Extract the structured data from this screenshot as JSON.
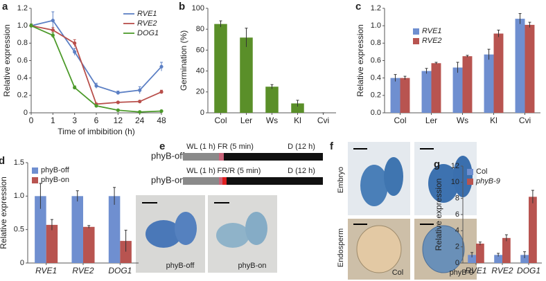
{
  "chart_data": [
    {
      "panel": "a",
      "type": "line",
      "xlabel": "Time of imbibition (h)",
      "ylabel": "Relative expression",
      "categories": [
        "0",
        "1",
        "3",
        "6",
        "12",
        "24",
        "48"
      ],
      "ylim": [
        0,
        1.2
      ],
      "yticks": [
        0,
        0.2,
        0.4,
        0.6,
        0.8,
        {
          "value": 1,
          "label": "1.0"
        },
        1.2
      ],
      "italic_legend": true,
      "series": [
        {
          "name": "RVE1",
          "color": "#5b7fc4",
          "values": [
            1.0,
            1.06,
            0.7,
            0.31,
            0.23,
            0.26,
            0.53
          ],
          "errors": [
            0.02,
            0.1,
            0.04,
            0.03,
            0.02,
            0.04,
            0.05
          ]
        },
        {
          "name": "RVE2",
          "color": "#b84f4b",
          "values": [
            1.0,
            0.95,
            0.8,
            0.1,
            0.12,
            0.13,
            0.24
          ],
          "errors": [
            0.02,
            0.03,
            0.04,
            0.01,
            0.01,
            0.01,
            0.02
          ]
        },
        {
          "name": "DOG1",
          "color": "#4c9a2a",
          "values": [
            1.0,
            0.89,
            0.29,
            0.08,
            0.03,
            0.01,
            0.02
          ],
          "errors": [
            0.02,
            0.03,
            0.02,
            0.01,
            0.01,
            0.01,
            0.01
          ]
        }
      ]
    },
    {
      "panel": "b",
      "type": "bar",
      "ylabel": "Germination (%)",
      "categories": [
        "Col",
        "Ler",
        "Ws",
        "Kl",
        "Cvi"
      ],
      "color": "#5a8f29",
      "values": [
        85,
        72,
        25,
        9,
        0
      ],
      "errors": [
        3,
        9,
        2,
        3,
        0
      ],
      "ylim": [
        0,
        100
      ],
      "yticks": [
        0,
        20,
        40,
        60,
        80,
        100
      ]
    },
    {
      "panel": "c",
      "type": "bar",
      "ylabel": "Relative expression",
      "italic_legend": true,
      "categories": [
        "Col",
        "Ler",
        "Ws",
        "Kl",
        "Cvi"
      ],
      "ylim": [
        0,
        1.2
      ],
      "yticks": [
        {
          "value": 0,
          "label": "0.0"
        },
        0.2,
        0.4,
        0.6,
        0.8,
        {
          "value": 1,
          "label": "1.0"
        },
        1.2
      ],
      "series": [
        {
          "name": "RVE1",
          "color": "#6f8fd0",
          "values": [
            0.4,
            0.48,
            0.52,
            0.67,
            1.08
          ],
          "errors": [
            0.04,
            0.03,
            0.06,
            0.06,
            0.06
          ]
        },
        {
          "name": "RVE2",
          "color": "#b85450",
          "values": [
            0.4,
            0.57,
            0.65,
            0.91,
            1.01
          ],
          "errors": [
            0.02,
            0.01,
            0.01,
            0.04,
            0.03
          ]
        }
      ]
    },
    {
      "panel": "d",
      "type": "bar",
      "ylabel": "Relative expression",
      "italic_categories": true,
      "categories": [
        "RVE1",
        "RVE2",
        "DOG1"
      ],
      "ylim": [
        0,
        1.5
      ],
      "yticks": [
        0,
        0.5,
        {
          "value": 1,
          "label": "1.0"
        },
        1.5
      ],
      "series": [
        {
          "name": "phyB-off",
          "color": "#6f8fd0",
          "values": [
            1.0,
            1.0,
            1.0
          ],
          "errors": [
            0.19,
            0.08,
            0.13
          ]
        },
        {
          "name": "phyB-on",
          "color": "#b85450",
          "values": [
            0.57,
            0.54,
            0.33
          ],
          "errors": [
            0.08,
            0.02,
            0.16
          ]
        }
      ]
    },
    {
      "panel": "g",
      "type": "bar",
      "ylabel": "Relative expression",
      "italic_categories": true,
      "categories": [
        "RVE1",
        "RVE2",
        "DOG1"
      ],
      "ylim": [
        0,
        12
      ],
      "yticks": [
        0,
        2,
        4,
        6,
        8,
        10,
        12
      ],
      "series": [
        {
          "name": "Col",
          "color": "#6f8fd0",
          "values": [
            1,
            1,
            1
          ],
          "errors": [
            0.3,
            0.2,
            0.4
          ]
        },
        {
          "name": "phyB-9",
          "color": "#b85450",
          "values": [
            2.4,
            3.1,
            8.2
          ],
          "errors": [
            0.2,
            0.4,
            0.8
          ]
        }
      ]
    }
  ],
  "diagram_e": {
    "panel": "e",
    "rows": [
      {
        "name": "phyB-off",
        "steps": [
          "WL (1 h)",
          "FR (5 min)",
          "D (12 h)"
        ]
      },
      {
        "name": "phyB-on",
        "steps": [
          "WL (1 h)",
          "FR/R (5 min)",
          "D (12 h)"
        ]
      }
    ],
    "captions": [
      "phyB-off",
      "phyB-on"
    ]
  },
  "images_f": {
    "panel": "f",
    "rows": [
      "Embryo",
      "Endosperm"
    ],
    "captions": [
      "Col",
      "phyB-9"
    ]
  }
}
